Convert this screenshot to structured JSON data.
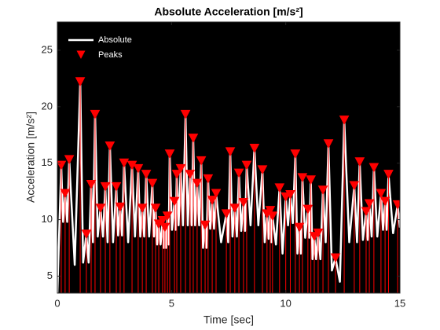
{
  "chart_data": {
    "type": "line",
    "title": "Absolute Acceleration [m/s²]",
    "x_label": "Time [sec]",
    "y_label": "Acceleration [m/s²]",
    "xlim": [
      0,
      15
    ],
    "ylim": [
      3.5,
      27.5
    ],
    "xticks": [
      0,
      5,
      10,
      15
    ],
    "yticks": [
      5,
      10,
      15,
      20,
      25
    ],
    "legend": "upper left",
    "background": "#000000",
    "series": [
      {
        "name": "Absolute",
        "color": "#ffffff",
        "style": "line",
        "x": [
          0,
          0.17,
          0.25,
          0.34,
          0.43,
          0.52,
          0.76,
          1.0,
          1.13,
          1.27,
          1.37,
          1.48,
          1.56,
          1.65,
          1.77,
          1.89,
          2.0,
          2.1,
          2.2,
          2.3,
          2.44,
          2.58,
          2.66,
          2.75,
          2.83,
          2.92,
          3.1,
          3.27,
          3.4,
          3.54,
          3.63,
          3.72,
          3.8,
          3.89,
          4.02,
          4.16,
          4.23,
          4.3,
          4.37,
          4.44,
          4.52,
          4.61,
          4.66,
          4.71,
          4.76,
          4.82,
          4.87,
          4.92,
          5.02,
          5.13,
          5.18,
          5.23,
          5.31,
          5.4,
          5.5,
          5.61,
          5.71,
          5.81,
          5.88,
          5.95,
          6.03,
          6.12,
          6.21,
          6.3,
          6.38,
          6.47,
          6.53,
          6.6,
          6.69,
          6.78,
          6.86,
          6.95,
          7.17,
          7.4,
          7.48,
          7.57,
          7.67,
          7.77,
          7.86,
          7.95,
          8.05,
          8.15,
          8.22,
          8.29,
          8.46,
          8.63,
          8.8,
          8.98,
          9.08,
          9.18,
          9.25,
          9.32,
          9.37,
          9.42,
          9.57,
          9.73,
          9.86,
          10.0,
          10.1,
          10.2,
          10.31,
          10.42,
          10.51,
          10.6,
          10.66,
          10.73,
          10.85,
          10.97,
          11.03,
          11.1,
          11.17,
          11.25,
          11.33,
          11.42,
          11.52,
          11.63,
          11.75,
          11.87,
          12.02,
          12.18,
          12.37,
          12.56,
          12.78,
          13.0,
          13.12,
          13.24,
          13.38,
          13.52,
          13.59,
          13.66,
          13.76,
          13.86,
          14.01,
          14.17,
          14.26,
          14.35,
          14.42,
          14.5,
          14.7,
          14.9,
          15
        ],
        "values": [
          3.5,
          14.8,
          9.8,
          12.3,
          9.8,
          15.3,
          6.0,
          22.2,
          6.2,
          8.7,
          6.2,
          13.1,
          8,
          19.3,
          8.5,
          11.0,
          8.5,
          12.9,
          8,
          16.5,
          8,
          12.9,
          8.6,
          11.1,
          8.6,
          15.0,
          8,
          14.8,
          8.5,
          14.5,
          8.5,
          11.0,
          8.5,
          14.0,
          8.5,
          13.2,
          8.5,
          11.0,
          7.8,
          9.6,
          7.8,
          9.9,
          7.5,
          9.3,
          7.5,
          10.3,
          7.8,
          15.8,
          9.1,
          11.6,
          9.1,
          14.0,
          9.5,
          14.5,
          9.5,
          19.3,
          9.5,
          14.0,
          9.5,
          17.2,
          9.5,
          13.2,
          9.5,
          15.2,
          7.5,
          9.5,
          7.5,
          13.6,
          9.2,
          11.7,
          9.2,
          12.3,
          8,
          10.5,
          8,
          16.0,
          8.5,
          11.0,
          8.5,
          14.1,
          9,
          11.5,
          9,
          14.8,
          9.5,
          16.3,
          9.5,
          14.4,
          8,
          10.5,
          8.3,
          10.8,
          8,
          10.3,
          7.8,
          12.8,
          7,
          12.0,
          9.5,
          12.2,
          9.7,
          15.8,
          7,
          9.3,
          7,
          13.7,
          8.4,
          10.9,
          8.4,
          13.5,
          6.5,
          8.5,
          6.5,
          8.8,
          6.5,
          12.6,
          8,
          16.7,
          5.5,
          6.6,
          4.5,
          18.8,
          8,
          13.0,
          8,
          15.1,
          8.2,
          10.7,
          8.2,
          11.4,
          8.5,
          14.6,
          8.5,
          12.3,
          9.1,
          11.6,
          9.1,
          14.0,
          8.8,
          11.3,
          9.3
        ]
      },
      {
        "name": "Peaks",
        "color": "#ff0000",
        "style": "marker",
        "x": [
          0.17,
          0.34,
          0.52,
          1.0,
          1.27,
          1.48,
          1.65,
          1.89,
          2.1,
          2.3,
          2.58,
          2.75,
          2.92,
          3.27,
          3.54,
          3.72,
          3.89,
          4.16,
          4.3,
          4.44,
          4.61,
          4.71,
          4.82,
          4.92,
          5.13,
          5.23,
          5.4,
          5.61,
          5.81,
          5.95,
          6.12,
          6.3,
          6.47,
          6.6,
          6.78,
          6.95,
          7.4,
          7.57,
          7.77,
          7.95,
          8.15,
          8.29,
          8.63,
          8.98,
          9.18,
          9.32,
          9.42,
          9.73,
          10.0,
          10.2,
          10.42,
          10.6,
          10.73,
          10.97,
          11.1,
          11.25,
          11.42,
          11.63,
          11.87,
          12.18,
          12.56,
          13.0,
          13.24,
          13.52,
          13.66,
          13.86,
          14.17,
          14.35,
          14.5,
          14.9
        ],
        "values": [
          14.8,
          12.3,
          15.3,
          22.2,
          8.7,
          13.1,
          19.3,
          11.0,
          12.9,
          16.5,
          12.9,
          11.1,
          15.0,
          14.8,
          14.5,
          11.0,
          14.0,
          13.2,
          11.0,
          9.6,
          9.9,
          9.3,
          10.3,
          15.8,
          11.6,
          14.0,
          14.5,
          19.3,
          14.0,
          17.2,
          13.2,
          15.2,
          9.5,
          13.6,
          11.7,
          12.3,
          10.5,
          16.0,
          11.0,
          14.1,
          11.5,
          14.8,
          16.3,
          14.4,
          10.5,
          10.8,
          10.3,
          12.8,
          12.0,
          12.2,
          15.8,
          9.3,
          13.7,
          10.9,
          13.5,
          8.5,
          8.8,
          12.6,
          16.7,
          6.6,
          18.8,
          13.0,
          15.1,
          10.7,
          11.4,
          14.6,
          12.3,
          11.6,
          14.0,
          11.3
        ]
      }
    ]
  }
}
